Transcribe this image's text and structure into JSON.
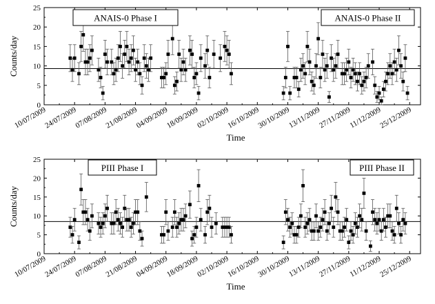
{
  "chart_data": [
    {
      "type": "scatter",
      "id": "panel-anais",
      "title": "",
      "xlabel": "Time",
      "ylabel": "Counts/day",
      "xlim": [
        "2009-07-10",
        "2009-12-30"
      ],
      "ylim": [
        0,
        25
      ],
      "yticks": [
        0,
        5,
        10,
        15,
        20,
        25
      ],
      "xticks": [
        "10/07/2009",
        "24/07/2009",
        "07/08/2009",
        "21/08/2009",
        "04/09/2009",
        "18/09/2009",
        "02/10/2009",
        "16/10/2009",
        "30/10/2009",
        "13/11/2009",
        "27/11/2009",
        "11/12/2009",
        "25/12/2009"
      ],
      "mean_line": 9.3,
      "annotations": [
        "ANAIS-0 Phase I",
        "ANAIS-0 Phase II"
      ],
      "series": [
        {
          "name": "ANAIS-0 Phase I",
          "points": [
            [
              "2009-07-22",
              12
            ],
            [
              "2009-07-23",
              9
            ],
            [
              "2009-07-24",
              12
            ],
            [
              "2009-07-26",
              8
            ],
            [
              "2009-07-27",
              15
            ],
            [
              "2009-07-28",
              18
            ],
            [
              "2009-07-29",
              11
            ],
            [
              "2009-07-30",
              11
            ],
            [
              "2009-07-31",
              12
            ],
            [
              "2009-08-01",
              14
            ],
            [
              "2009-08-04",
              9
            ],
            [
              "2009-08-05",
              7
            ],
            [
              "2009-08-06",
              3
            ],
            [
              "2009-08-07",
              13
            ],
            [
              "2009-08-08",
              11
            ],
            [
              "2009-08-10",
              11
            ],
            [
              "2009-08-11",
              8
            ],
            [
              "2009-08-12",
              9
            ],
            [
              "2009-08-13",
              12
            ],
            [
              "2009-08-14",
              15
            ],
            [
              "2009-08-15",
              10
            ],
            [
              "2009-08-16",
              13
            ],
            [
              "2009-08-17",
              15
            ],
            [
              "2009-08-18",
              11
            ],
            [
              "2009-08-19",
              12
            ],
            [
              "2009-08-20",
              14
            ],
            [
              "2009-08-21",
              9
            ],
            [
              "2009-08-22",
              11
            ],
            [
              "2009-08-23",
              8
            ],
            [
              "2009-08-24",
              5
            ],
            [
              "2009-08-25",
              12
            ],
            [
              "2009-08-26",
              10
            ],
            [
              "2009-08-27",
              9
            ],
            [
              "2009-08-28",
              12
            ],
            [
              "2009-09-02",
              7
            ],
            [
              "2009-09-03",
              7
            ],
            [
              "2009-09-04",
              8
            ],
            [
              "2009-09-05",
              13
            ],
            [
              "2009-09-07",
              17
            ],
            [
              "2009-09-08",
              5
            ],
            [
              "2009-09-09",
              6
            ],
            [
              "2009-09-10",
              13
            ],
            [
              "2009-09-11",
              9
            ],
            [
              "2009-09-12",
              11
            ],
            [
              "2009-09-13",
              9
            ],
            [
              "2009-09-15",
              14
            ],
            [
              "2009-09-16",
              13
            ],
            [
              "2009-09-17",
              7
            ],
            [
              "2009-09-18",
              8
            ],
            [
              "2009-09-19",
              3
            ],
            [
              "2009-09-20",
              12
            ],
            [
              "2009-09-22",
              10
            ],
            [
              "2009-09-23",
              14
            ],
            [
              "2009-09-24",
              7
            ],
            [
              "2009-09-26",
              13
            ],
            [
              "2009-09-29",
              12
            ],
            [
              "2009-10-01",
              15
            ],
            [
              "2009-10-02",
              14
            ],
            [
              "2009-10-03",
              13
            ],
            [
              "2009-10-04",
              8
            ]
          ]
        },
        {
          "name": "ANAIS-0 Phase II",
          "points": [
            [
              "2009-10-28",
              3
            ],
            [
              "2009-10-29",
              7
            ],
            [
              "2009-10-30",
              15
            ],
            [
              "2009-10-31",
              3
            ],
            [
              "2009-11-02",
              7
            ],
            [
              "2009-11-03",
              7
            ],
            [
              "2009-11-04",
              4
            ],
            [
              "2009-11-05",
              9
            ],
            [
              "2009-11-06",
              10
            ],
            [
              "2009-11-07",
              8
            ],
            [
              "2009-11-08",
              15
            ],
            [
              "2009-11-09",
              11
            ],
            [
              "2009-11-10",
              6
            ],
            [
              "2009-11-11",
              5
            ],
            [
              "2009-11-12",
              10
            ],
            [
              "2009-11-13",
              17
            ],
            [
              "2009-11-14",
              7
            ],
            [
              "2009-11-15",
              13
            ],
            [
              "2009-11-16",
              9
            ],
            [
              "2009-11-17",
              10
            ],
            [
              "2009-11-18",
              2
            ],
            [
              "2009-11-19",
              12
            ],
            [
              "2009-11-20",
              9
            ],
            [
              "2009-11-21",
              10
            ],
            [
              "2009-11-22",
              13
            ],
            [
              "2009-11-24",
              8
            ],
            [
              "2009-11-25",
              8
            ],
            [
              "2009-11-26",
              9
            ],
            [
              "2009-11-27",
              11
            ],
            [
              "2009-11-28",
              7
            ],
            [
              "2009-11-29",
              9
            ],
            [
              "2009-11-30",
              8
            ],
            [
              "2009-12-01",
              6
            ],
            [
              "2009-12-02",
              8
            ],
            [
              "2009-12-03",
              5
            ],
            [
              "2009-12-04",
              6
            ],
            [
              "2009-12-05",
              7
            ],
            [
              "2009-12-06",
              10
            ],
            [
              "2009-12-08",
              11
            ],
            [
              "2009-12-09",
              5
            ],
            [
              "2009-12-10",
              2
            ],
            [
              "2009-12-11",
              3
            ],
            [
              "2009-12-12",
              1
            ],
            [
              "2009-12-13",
              4
            ],
            [
              "2009-12-14",
              6
            ],
            [
              "2009-12-15",
              8
            ],
            [
              "2009-12-16",
              10
            ],
            [
              "2009-12-17",
              8
            ],
            [
              "2009-12-18",
              11
            ],
            [
              "2009-12-19",
              9
            ],
            [
              "2009-12-20",
              14
            ],
            [
              "2009-12-21",
              10
            ],
            [
              "2009-12-22",
              6
            ],
            [
              "2009-12-23",
              12
            ],
            [
              "2009-12-24",
              3
            ]
          ]
        }
      ]
    },
    {
      "type": "scatter",
      "id": "panel-piii",
      "title": "",
      "xlabel": "Time",
      "ylabel": "Counts/day",
      "xlim": [
        "2009-07-10",
        "2009-12-30"
      ],
      "ylim": [
        0,
        25
      ],
      "yticks": [
        0,
        5,
        10,
        15,
        20,
        25
      ],
      "xticks": [
        "10/07/2009",
        "24/07/2009",
        "07/08/2009",
        "21/08/2009",
        "04/09/2009",
        "18/09/2009",
        "02/10/2009",
        "16/10/2009",
        "30/10/2009",
        "13/11/2009",
        "27/11/2009",
        "11/12/2009",
        "25/12/2009"
      ],
      "mean_line": 8.5,
      "annotations": [
        "PIII Phase I",
        "PIII Phase II"
      ],
      "series": [
        {
          "name": "PIII Phase I",
          "points": [
            [
              "2009-07-22",
              7
            ],
            [
              "2009-07-23",
              5
            ],
            [
              "2009-07-24",
              9
            ],
            [
              "2009-07-26",
              3
            ],
            [
              "2009-07-27",
              17
            ],
            [
              "2009-07-28",
              11
            ],
            [
              "2009-07-29",
              11
            ],
            [
              "2009-07-30",
              9
            ],
            [
              "2009-07-31",
              6
            ],
            [
              "2009-08-01",
              10
            ],
            [
              "2009-08-04",
              8
            ],
            [
              "2009-08-05",
              7
            ],
            [
              "2009-08-06",
              8
            ],
            [
              "2009-08-07",
              10
            ],
            [
              "2009-08-08",
              12
            ],
            [
              "2009-08-10",
              8
            ],
            [
              "2009-08-11",
              8
            ],
            [
              "2009-08-12",
              11
            ],
            [
              "2009-08-13",
              9
            ],
            [
              "2009-08-14",
              8
            ],
            [
              "2009-08-15",
              7
            ],
            [
              "2009-08-16",
              12
            ],
            [
              "2009-08-17",
              9
            ],
            [
              "2009-08-18",
              9
            ],
            [
              "2009-08-19",
              7
            ],
            [
              "2009-08-20",
              8
            ],
            [
              "2009-08-21",
              11
            ],
            [
              "2009-08-22",
              11
            ],
            [
              "2009-08-23",
              6
            ],
            [
              "2009-08-24",
              4
            ],
            [
              "2009-08-26",
              15
            ],
            [
              "2009-09-02",
              5
            ],
            [
              "2009-09-03",
              5
            ],
            [
              "2009-09-04",
              11
            ],
            [
              "2009-09-05",
              6
            ],
            [
              "2009-09-07",
              7
            ],
            [
              "2009-09-08",
              11
            ],
            [
              "2009-09-09",
              7
            ],
            [
              "2009-09-10",
              8
            ],
            [
              "2009-09-11",
              9
            ],
            [
              "2009-09-12",
              9
            ],
            [
              "2009-09-13",
              10
            ],
            [
              "2009-09-15",
              13
            ],
            [
              "2009-09-16",
              4
            ],
            [
              "2009-09-17",
              5
            ],
            [
              "2009-09-18",
              7
            ],
            [
              "2009-09-19",
              18
            ],
            [
              "2009-09-20",
              9
            ],
            [
              "2009-09-22",
              5
            ],
            [
              "2009-09-23",
              11
            ],
            [
              "2009-09-24",
              12
            ],
            [
              "2009-09-25",
              7
            ],
            [
              "2009-09-27",
              8
            ],
            [
              "2009-09-30",
              7
            ],
            [
              "2009-10-01",
              7
            ],
            [
              "2009-10-02",
              7
            ],
            [
              "2009-10-03",
              7
            ],
            [
              "2009-10-04",
              5
            ]
          ]
        },
        {
          "name": "PIII Phase II",
          "points": [
            [
              "2009-10-28",
              3
            ],
            [
              "2009-10-29",
              11
            ],
            [
              "2009-10-30",
              9
            ],
            [
              "2009-10-31",
              7
            ],
            [
              "2009-11-01",
              8
            ],
            [
              "2009-11-02",
              5
            ],
            [
              "2009-11-03",
              5
            ],
            [
              "2009-11-04",
              7
            ],
            [
              "2009-11-05",
              10
            ],
            [
              "2009-11-06",
              18
            ],
            [
              "2009-11-07",
              7
            ],
            [
              "2009-11-08",
              8
            ],
            [
              "2009-11-09",
              9
            ],
            [
              "2009-11-10",
              6
            ],
            [
              "2009-11-11",
              6
            ],
            [
              "2009-11-12",
              10
            ],
            [
              "2009-11-13",
              6
            ],
            [
              "2009-11-14",
              7
            ],
            [
              "2009-11-15",
              9
            ],
            [
              "2009-11-16",
              11
            ],
            [
              "2009-11-17",
              6
            ],
            [
              "2009-11-18",
              8
            ],
            [
              "2009-11-19",
              12
            ],
            [
              "2009-11-20",
              7
            ],
            [
              "2009-11-21",
              15
            ],
            [
              "2009-11-22",
              11
            ],
            [
              "2009-11-23",
              6
            ],
            [
              "2009-11-24",
              6
            ],
            [
              "2009-11-25",
              7
            ],
            [
              "2009-11-26",
              9
            ],
            [
              "2009-11-27",
              3
            ],
            [
              "2009-11-28",
              6
            ],
            [
              "2009-11-29",
              5
            ],
            [
              "2009-11-30",
              8
            ],
            [
              "2009-12-01",
              7
            ],
            [
              "2009-12-02",
              10
            ],
            [
              "2009-12-03",
              9
            ],
            [
              "2009-12-04",
              16
            ],
            [
              "2009-12-05",
              6
            ],
            [
              "2009-12-07",
              2
            ],
            [
              "2009-12-08",
              11
            ],
            [
              "2009-12-09",
              9
            ],
            [
              "2009-12-10",
              8
            ],
            [
              "2009-12-11",
              9
            ],
            [
              "2009-12-12",
              6
            ],
            [
              "2009-12-13",
              9
            ],
            [
              "2009-12-14",
              7
            ],
            [
              "2009-12-15",
              10
            ],
            [
              "2009-12-16",
              10
            ],
            [
              "2009-12-17",
              6
            ],
            [
              "2009-12-18",
              5
            ],
            [
              "2009-12-19",
              12
            ],
            [
              "2009-12-20",
              8
            ],
            [
              "2009-12-21",
              5
            ],
            [
              "2009-12-22",
              9
            ],
            [
              "2009-12-23",
              8
            ]
          ]
        }
      ]
    }
  ]
}
